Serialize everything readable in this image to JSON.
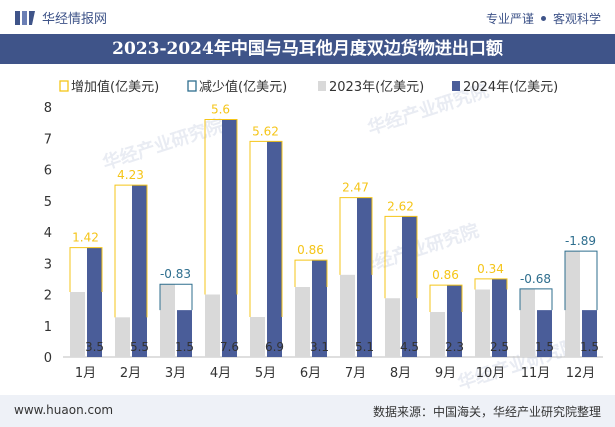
{
  "header": {
    "logo_text": "华经情报网",
    "tag1": "专业严谨",
    "tag2": "客观科学"
  },
  "title": "2023-2024年中国与马耳他月度双边货物进出口额",
  "footer": {
    "url": "www.huaon.com",
    "source": "数据来源：中国海关，华经产业研究院整理"
  },
  "watermark": "华经产业研究院",
  "colors": {
    "brand": "#3f5489",
    "series2023": "#d9d9d9",
    "series2024": "#4a5d99",
    "increase": "#f5c518",
    "decrease": "#2e6e8e"
  },
  "chart_data": {
    "type": "bar",
    "categories": [
      "1月",
      "2月",
      "3月",
      "4月",
      "5月",
      "6月",
      "7月",
      "8月",
      "9月",
      "10月",
      "11月",
      "12月"
    ],
    "series": [
      {
        "name": "2023年(亿美元)",
        "values": [
          2.08,
          1.27,
          2.33,
          2.0,
          1.28,
          2.24,
          2.63,
          1.88,
          1.44,
          2.16,
          2.18,
          3.39
        ]
      },
      {
        "name": "2024年(亿美元)",
        "values": [
          3.5,
          5.5,
          1.5,
          7.6,
          6.9,
          3.1,
          5.1,
          4.5,
          2.3,
          2.5,
          1.5,
          1.5
        ]
      }
    ],
    "value_labels": [
      "3.5",
      "5.5",
      "1.5",
      "7.6",
      "6.9",
      "3.1",
      "5.1",
      "4.5",
      "2.3",
      "2.5",
      "1.5",
      "1.5"
    ],
    "change_labels": [
      "1.42",
      "4.23",
      "-0.83",
      "5.6",
      "5.62",
      "0.86",
      "2.47",
      "2.62",
      "0.86",
      "0.34",
      "-0.68",
      "-1.89"
    ],
    "legend": [
      "增加值(亿美元)",
      "减少值(亿美元)",
      "2023年(亿美元)",
      "2024年(亿美元)"
    ],
    "y_ticks": [
      "0",
      "1",
      "2",
      "3",
      "4",
      "5",
      "6",
      "7",
      "8"
    ],
    "ylim": [
      0,
      8
    ],
    "legend_position": "top"
  }
}
